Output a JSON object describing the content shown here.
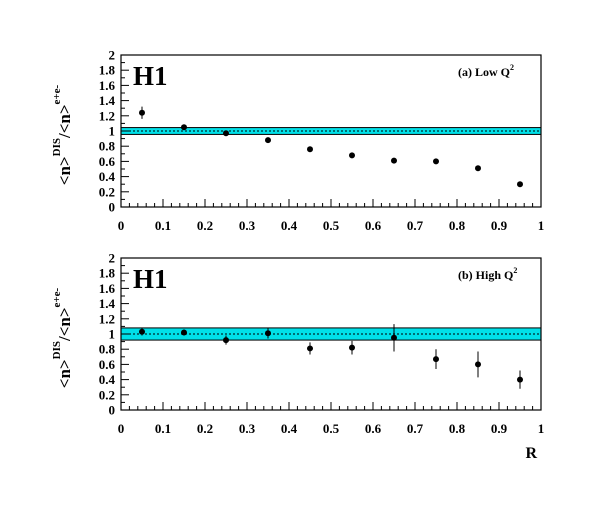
{
  "chart_data": [
    {
      "type": "scatter",
      "logo": "H1",
      "panel_label": "(a) Low Q",
      "panel_label_sup": "2",
      "ylabel_main": "<n>",
      "ylabel_sup1": "DIS",
      "ylabel_mid": "/<n>",
      "ylabel_sup2": "e+e-",
      "xlabel": "",
      "xlim": [
        0,
        1
      ],
      "ylim": [
        0,
        2
      ],
      "x_ticks": [
        "0",
        "0.1",
        "0.2",
        "0.3",
        "0.4",
        "0.5",
        "0.6",
        "0.7",
        "0.8",
        "0.9",
        "1"
      ],
      "y_ticks": [
        "0",
        "0.2",
        "0.4",
        "0.6",
        "0.8",
        "1",
        "1.2",
        "1.4",
        "1.6",
        "1.8",
        "2"
      ],
      "band": {
        "low": 0.955,
        "high": 1.045,
        "center": 1.0,
        "color": "#00e0e8"
      },
      "series": [
        {
          "x": [
            0.05,
            0.15,
            0.25,
            0.35,
            0.45,
            0.55,
            0.65,
            0.75,
            0.85,
            0.95
          ],
          "y": [
            1.24,
            1.05,
            0.97,
            0.88,
            0.76,
            0.68,
            0.61,
            0.6,
            0.51,
            0.3
          ],
          "yerr": [
            0.08,
            0.03,
            0.03,
            0.02,
            0.02,
            0.02,
            0.02,
            0.03,
            0.03,
            0.02
          ]
        }
      ]
    },
    {
      "type": "scatter",
      "logo": "H1",
      "panel_label": "(b) High Q",
      "panel_label_sup": "2",
      "ylabel_main": "<n>",
      "ylabel_sup1": "DIS",
      "ylabel_mid": "/<n>",
      "ylabel_sup2": "e+e-",
      "xlabel": "R",
      "xlim": [
        0,
        1
      ],
      "ylim": [
        0,
        2
      ],
      "x_ticks": [
        "0",
        "0.1",
        "0.2",
        "0.3",
        "0.4",
        "0.5",
        "0.6",
        "0.7",
        "0.8",
        "0.9",
        "1"
      ],
      "y_ticks": [
        "0",
        "0.2",
        "0.4",
        "0.6",
        "0.8",
        "1",
        "1.2",
        "1.4",
        "1.6",
        "1.8",
        "2"
      ],
      "band": {
        "low": 0.92,
        "high": 1.08,
        "center": 1.0,
        "color": "#00e0e8"
      },
      "series": [
        {
          "x": [
            0.05,
            0.15,
            0.25,
            0.35,
            0.45,
            0.55,
            0.65,
            0.75,
            0.85,
            0.95
          ],
          "y": [
            1.03,
            1.02,
            0.92,
            1.01,
            0.81,
            0.82,
            0.95,
            0.67,
            0.6,
            0.4
          ],
          "yerr": [
            0.05,
            0.04,
            0.06,
            0.07,
            0.08,
            0.09,
            0.18,
            0.13,
            0.17,
            0.12
          ]
        }
      ]
    }
  ]
}
